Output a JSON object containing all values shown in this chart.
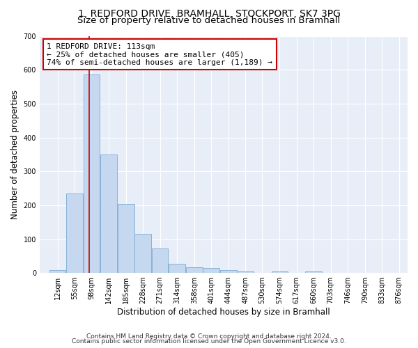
{
  "title_line1": "1, REDFORD DRIVE, BRAMHALL, STOCKPORT, SK7 3PG",
  "title_line2": "Size of property relative to detached houses in Bramhall",
  "xlabel": "Distribution of detached houses by size in Bramhall",
  "ylabel": "Number of detached properties",
  "bar_color": "#c5d8f0",
  "bar_edge_color": "#7baad4",
  "bg_color": "#e8eef8",
  "bin_labels": [
    "12sqm",
    "55sqm",
    "98sqm",
    "142sqm",
    "185sqm",
    "228sqm",
    "271sqm",
    "314sqm",
    "358sqm",
    "401sqm",
    "444sqm",
    "487sqm",
    "530sqm",
    "574sqm",
    "617sqm",
    "660sqm",
    "703sqm",
    "746sqm",
    "790sqm",
    "833sqm",
    "876sqm"
  ],
  "bar_heights": [
    8,
    235,
    585,
    350,
    203,
    115,
    73,
    27,
    17,
    14,
    8,
    5,
    0,
    5,
    0,
    4,
    0,
    0,
    0,
    0,
    0
  ],
  "bin_edges": [
    12,
    55,
    98,
    142,
    185,
    228,
    271,
    314,
    358,
    401,
    444,
    487,
    530,
    574,
    617,
    660,
    703,
    746,
    790,
    833,
    876
  ],
  "property_size": 113,
  "vline_color": "#cc0000",
  "annotation_text": "1 REDFORD DRIVE: 113sqm\n← 25% of detached houses are smaller (405)\n74% of semi-detached houses are larger (1,189) →",
  "annotation_box_color": "#ffffff",
  "annotation_border_color": "#cc0000",
  "ylim": [
    0,
    700
  ],
  "yticks": [
    0,
    100,
    200,
    300,
    400,
    500,
    600,
    700
  ],
  "footer_line1": "Contains HM Land Registry data © Crown copyright and database right 2024.",
  "footer_line2": "Contains public sector information licensed under the Open Government Licence v3.0.",
  "title_fontsize": 10,
  "subtitle_fontsize": 9.5,
  "axis_label_fontsize": 8.5,
  "tick_fontsize": 7,
  "annotation_fontsize": 8,
  "footer_fontsize": 6.5
}
